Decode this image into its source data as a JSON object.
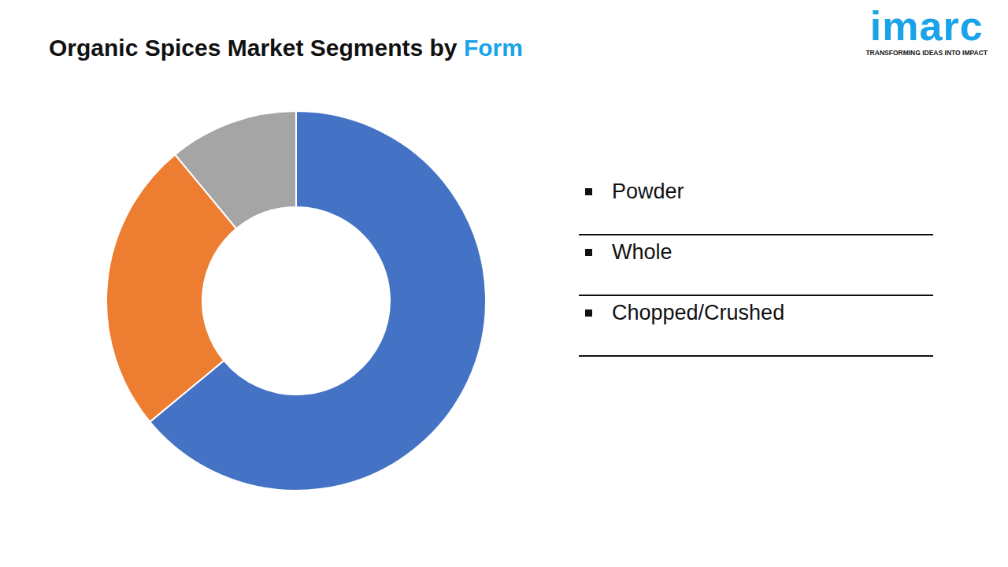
{
  "chart_data": {
    "type": "pie",
    "title": "Organic Spices Market Segments by Form",
    "annotations": [
      "imarc",
      "TRANSFORMING IDEAS INTO IMPACT"
    ],
    "categories": [
      "Powder",
      "Whole",
      "Chopped/Crushed"
    ],
    "values": [
      64,
      25,
      11
    ],
    "colors": [
      "#4472c4",
      "#ed7d31",
      "#a5a5a5"
    ],
    "legend": "right",
    "data_labels": false
  }
}
